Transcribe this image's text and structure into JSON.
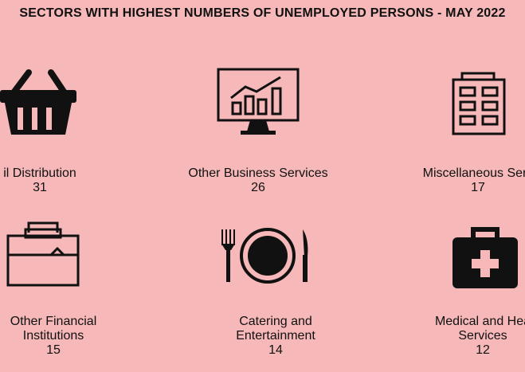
{
  "title": "SECTORS WITH HIGHEST NUMBERS OF UNEMPLOYED PERSONS - MAY 2022",
  "sectors": [
    {
      "name": "il Distribution",
      "value": "31",
      "icon": "shopping-basket-icon"
    },
    {
      "name": "Other Business Services",
      "value": "26",
      "icon": "monitor-chart-icon"
    },
    {
      "name": "Miscellaneous Serv",
      "value": "17",
      "icon": "building-icon"
    },
    {
      "name": "Other Financial\nInstitutions",
      "value": "15",
      "icon": "briefcase-icon"
    },
    {
      "name": "Catering and\nEntertainment",
      "value": "14",
      "icon": "plate-cutlery-icon"
    },
    {
      "name": "Medical and Hea\nServices",
      "value": "12",
      "icon": "medical-kit-icon"
    }
  ]
}
